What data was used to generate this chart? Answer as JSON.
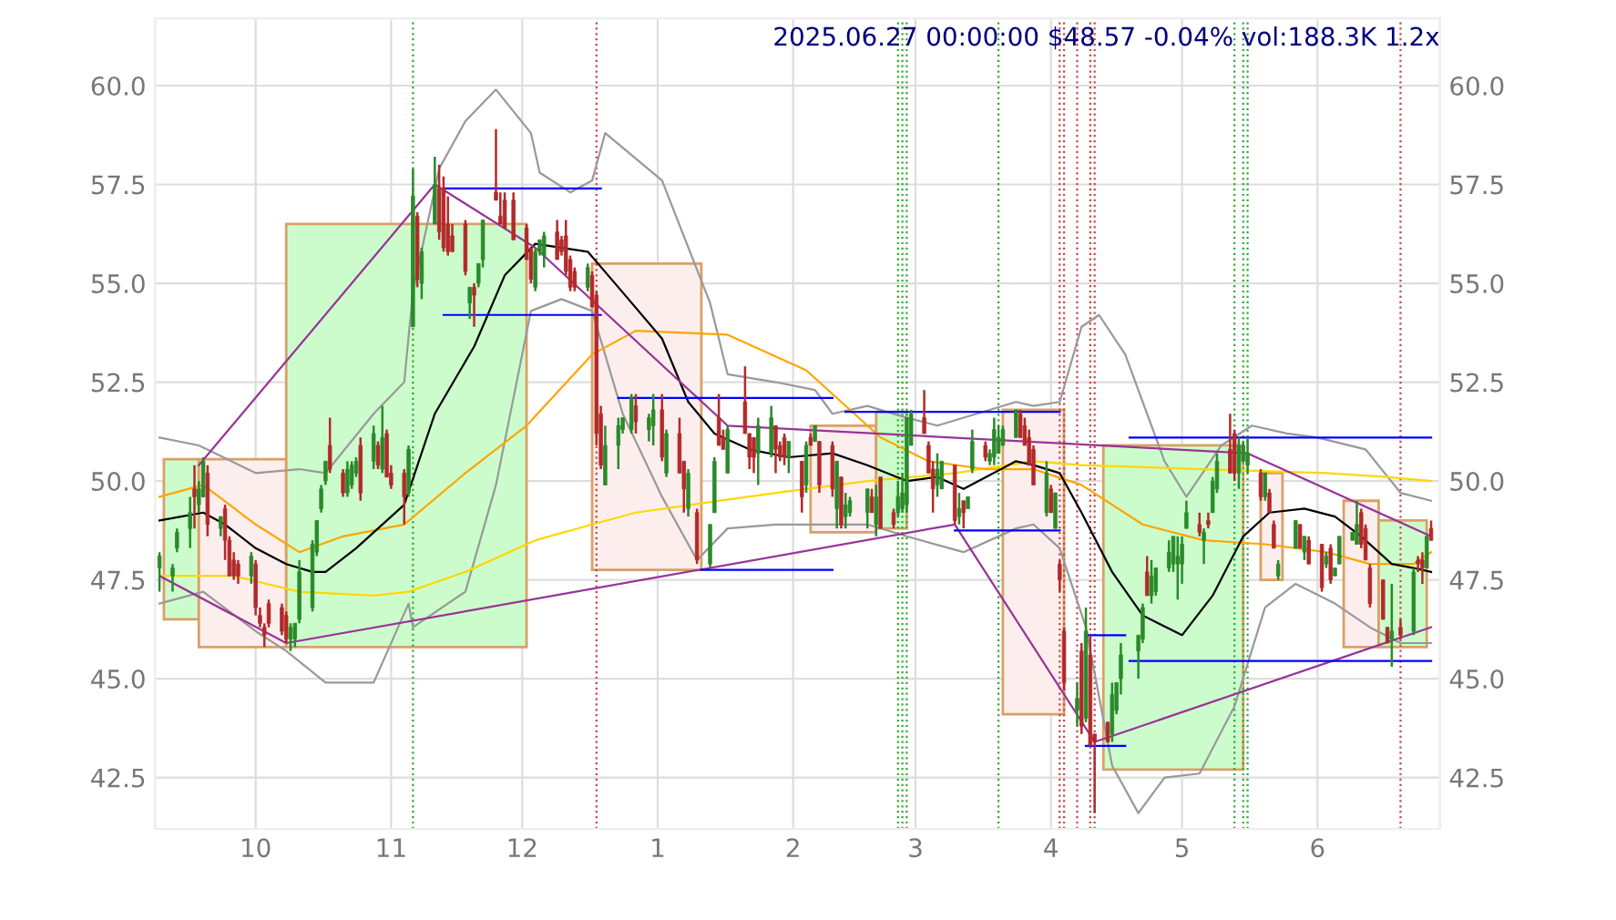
{
  "chart_data": {
    "type": "candlestick",
    "title": "2025.06.27 00:00:00 $48.57 -0.04% vol:188.3K 1.2x",
    "x": [
      "2024-09-09",
      "2024-09-12",
      "2024-09-13",
      "2024-09-16",
      "2024-09-17",
      "2024-09-18",
      "2024-09-19",
      "2024-09-20",
      "2024-09-23",
      "2024-09-24",
      "2024-09-25",
      "2024-09-26",
      "2024-09-27",
      "2024-09-30",
      "2024-10-01",
      "2024-10-02",
      "2024-10-03",
      "2024-10-04",
      "2024-10-07",
      "2024-10-08",
      "2024-10-09",
      "2024-10-10",
      "2024-10-11",
      "2024-10-14",
      "2024-10-15",
      "2024-10-16",
      "2024-10-17",
      "2024-10-18",
      "2024-10-21",
      "2024-10-22",
      "2024-10-23",
      "2024-10-24",
      "2024-10-25",
      "2024-10-28",
      "2024-10-29",
      "2024-10-30",
      "2024-10-31",
      "2024-11-01",
      "2024-11-04",
      "2024-11-05",
      "2024-11-06",
      "2024-11-07",
      "2024-11-08",
      "2024-11-11",
      "2024-11-12",
      "2024-11-13",
      "2024-11-14",
      "2024-11-15",
      "2024-11-18",
      "2024-11-19",
      "2024-11-20",
      "2024-11-21",
      "2024-11-22",
      "2024-11-25",
      "2024-11-26",
      "2024-11-27",
      "2024-11-29",
      "2024-12-02",
      "2024-12-03",
      "2024-12-04",
      "2024-12-05",
      "2024-12-06",
      "2024-12-09",
      "2024-12-10",
      "2024-12-11",
      "2024-12-12",
      "2024-12-13",
      "2024-12-16",
      "2024-12-17",
      "2024-12-18",
      "2024-12-19",
      "2024-12-20",
      "2024-12-23",
      "2024-12-24",
      "2024-12-26",
      "2024-12-27",
      "2024-12-30",
      "2024-12-31",
      "2025-01-02",
      "2025-01-03",
      "2025-01-06",
      "2025-01-07",
      "2025-01-08",
      "2025-01-10",
      "2025-01-13",
      "2025-01-14",
      "2025-01-15",
      "2025-01-16",
      "2025-01-17",
      "2025-01-21",
      "2025-01-22",
      "2025-01-23",
      "2025-01-24",
      "2025-01-27",
      "2025-01-28",
      "2025-01-29",
      "2025-01-30",
      "2025-01-31",
      "2025-02-03",
      "2025-02-04",
      "2025-02-05",
      "2025-02-06",
      "2025-02-07",
      "2025-02-10",
      "2025-02-11",
      "2025-02-12",
      "2025-02-13",
      "2025-02-14",
      "2025-02-18",
      "2025-02-19",
      "2025-02-20",
      "2025-02-21",
      "2025-02-24",
      "2025-02-25",
      "2025-02-26",
      "2025-02-27",
      "2025-02-28",
      "2025-03-03",
      "2025-03-04",
      "2025-03-05",
      "2025-03-06",
      "2025-03-07",
      "2025-03-10",
      "2025-03-11",
      "2025-03-12",
      "2025-03-13",
      "2025-03-14",
      "2025-03-17",
      "2025-03-18",
      "2025-03-19",
      "2025-03-20",
      "2025-03-21",
      "2025-03-24",
      "2025-03-25",
      "2025-03-26",
      "2025-03-27",
      "2025-03-28",
      "2025-03-31",
      "2025-04-01",
      "2025-04-02",
      "2025-04-03",
      "2025-04-04",
      "2025-04-07",
      "2025-04-08",
      "2025-04-09",
      "2025-04-10",
      "2025-04-11",
      "2025-04-14",
      "2025-04-15",
      "2025-04-16",
      "2025-04-17",
      "2025-04-21",
      "2025-04-22",
      "2025-04-23",
      "2025-04-24",
      "2025-04-25",
      "2025-04-28",
      "2025-04-29",
      "2025-04-30",
      "2025-05-01",
      "2025-05-02",
      "2025-05-05",
      "2025-05-06",
      "2025-05-07",
      "2025-05-08",
      "2025-05-09",
      "2025-05-12",
      "2025-05-13",
      "2025-05-14",
      "2025-05-15",
      "2025-05-16",
      "2025-05-19",
      "2025-05-20",
      "2025-05-21",
      "2025-05-22",
      "2025-05-23",
      "2025-05-27",
      "2025-05-28",
      "2025-05-29",
      "2025-05-30",
      "2025-06-02",
      "2025-06-03",
      "2025-06-04",
      "2025-06-05",
      "2025-06-06",
      "2025-06-09",
      "2025-06-10",
      "2025-06-11",
      "2025-06-12",
      "2025-06-13",
      "2025-06-16",
      "2025-06-17",
      "2025-06-18",
      "2025-06-20",
      "2025-06-23",
      "2025-06-24",
      "2025-06-25",
      "2025-06-26",
      "2025-06-27"
    ],
    "ohlc": [
      [
        47.8,
        48.2,
        47.2,
        48.1
      ],
      [
        47.6,
        47.9,
        47.2,
        47.8
      ],
      [
        48.3,
        48.8,
        48.2,
        48.7
      ],
      [
        48.8,
        49.6,
        48.3,
        49.2
      ],
      [
        49.8,
        50.4,
        48.8,
        49.6
      ],
      [
        49.4,
        50.0,
        49.2,
        49.8
      ],
      [
        49.6,
        50.6,
        49.6,
        50.5
      ],
      [
        50.2,
        50.4,
        48.6,
        48.9
      ],
      [
        48.8,
        49.1,
        48.6,
        49.1
      ],
      [
        49.3,
        49.4,
        48.0,
        48.5
      ],
      [
        48.5,
        48.6,
        47.6,
        47.6
      ],
      [
        48.0,
        48.2,
        47.5,
        47.6
      ],
      [
        47.9,
        48.0,
        47.4,
        47.6
      ],
      [
        47.6,
        48.2,
        47.4,
        48.1
      ],
      [
        47.9,
        48.0,
        46.6,
        46.8
      ],
      [
        46.6,
        46.8,
        46.3,
        46.4
      ],
      [
        46.3,
        46.4,
        45.8,
        46.1
      ],
      [
        46.9,
        47.0,
        46.3,
        46.4
      ],
      [
        46.8,
        46.9,
        46.1,
        46.2
      ],
      [
        46.6,
        46.7,
        45.9,
        46.0
      ],
      [
        46.0,
        46.4,
        45.7,
        46.3
      ],
      [
        46.0,
        46.4,
        45.8,
        46.4
      ],
      [
        46.5,
        48.0,
        46.4,
        47.7
      ],
      [
        46.8,
        48.5,
        46.7,
        48.4
      ],
      [
        48.2,
        49.0,
        48.1,
        49.0
      ],
      [
        49.3,
        49.9,
        49.2,
        49.8
      ],
      [
        50.0,
        50.5,
        49.9,
        50.5
      ],
      [
        50.9,
        51.6,
        50.2,
        50.3
      ],
      [
        50.2,
        50.3,
        49.6,
        49.7
      ],
      [
        49.7,
        50.5,
        49.6,
        50.3
      ],
      [
        49.9,
        50.5,
        49.8,
        50.4
      ],
      [
        50.2,
        50.6,
        50.1,
        50.5
      ],
      [
        50.9,
        51.1,
        49.5,
        49.7
      ],
      [
        50.5,
        51.4,
        50.3,
        51.2
      ],
      [
        50.9,
        51.0,
        50.3,
        50.4
      ],
      [
        50.3,
        51.9,
        50.2,
        51.1
      ],
      [
        51.2,
        51.3,
        50.1,
        50.1
      ],
      [
        50.2,
        50.4,
        49.8,
        49.9
      ],
      [
        50.2,
        50.3,
        48.9,
        49.6
      ],
      [
        49.7,
        50.9,
        49.6,
        50.8
      ],
      [
        53.9,
        57.9,
        53.9,
        57.2
      ],
      [
        56.7,
        56.8,
        54.9,
        55.1
      ],
      [
        55.0,
        55.9,
        54.6,
        55.8
      ],
      [
        56.5,
        58.2,
        56.5,
        57.5
      ],
      [
        57.4,
        58.0,
        56.1,
        56.3
      ],
      [
        57.4,
        57.7,
        55.8,
        55.9
      ],
      [
        56.5,
        57.2,
        55.7,
        55.8
      ],
      [
        56.2,
        56.5,
        55.8,
        55.8
      ],
      [
        56.5,
        56.6,
        55.2,
        55.3
      ],
      [
        54.5,
        54.9,
        54.1,
        54.9
      ],
      [
        54.9,
        55.0,
        53.9,
        54.7
      ],
      [
        55.0,
        55.5,
        54.9,
        55.5
      ],
      [
        55.6,
        56.6,
        55.4,
        56.6
      ],
      [
        57.3,
        58.9,
        57.1,
        57.1
      ],
      [
        56.7,
        57.3,
        56.5,
        56.5
      ],
      [
        57.1,
        57.3,
        56.4,
        56.4
      ],
      [
        57.1,
        57.3,
        56.1,
        56.1
      ],
      [
        56.4,
        56.5,
        55.6,
        55.6
      ],
      [
        55.9,
        55.9,
        55.0,
        55.1
      ],
      [
        54.9,
        55.9,
        54.8,
        55.8
      ],
      [
        55.8,
        56.1,
        55.7,
        56.1
      ],
      [
        55.7,
        56.3,
        55.4,
        56.2
      ],
      [
        56.3,
        56.6,
        55.6,
        55.6
      ],
      [
        56.1,
        56.2,
        55.7,
        55.8
      ],
      [
        56.2,
        56.6,
        55.2,
        55.3
      ],
      [
        55.6,
        55.7,
        54.8,
        54.9
      ],
      [
        55.3,
        55.4,
        54.8,
        54.9
      ],
      [
        54.9,
        55.5,
        54.8,
        55.4
      ],
      [
        55.2,
        55.3,
        54.4,
        54.4
      ],
      [
        54.7,
        54.8,
        50.9,
        51.2
      ],
      [
        51.7,
        51.9,
        50.3,
        50.4
      ],
      [
        49.9,
        51.4,
        49.9,
        50.9
      ],
      [
        50.9,
        51.6,
        50.3,
        51.4
      ],
      [
        51.3,
        51.6,
        51.2,
        51.6
      ],
      [
        51.3,
        52.2,
        51.2,
        52.1
      ],
      [
        51.9,
        52.2,
        51.2,
        51.5
      ],
      [
        51.3,
        51.7,
        51.0,
        51.6
      ],
      [
        51.4,
        52.2,
        50.9,
        51.8
      ],
      [
        51.8,
        52.2,
        50.5,
        50.6
      ],
      [
        50.2,
        51.3,
        50.1,
        51.2
      ],
      [
        51.2,
        51.6,
        50.2,
        50.2
      ],
      [
        50.5,
        50.5,
        49.2,
        49.8
      ],
      [
        49.3,
        50.3,
        49.1,
        50.2
      ],
      [
        49.2,
        49.3,
        47.9,
        48.0
      ],
      [
        47.9,
        48.9,
        47.8,
        48.9
      ],
      [
        49.2,
        50.6,
        49.2,
        50.5
      ],
      [
        51.6,
        52.2,
        50.9,
        50.9
      ],
      [
        51.1,
        51.3,
        50.8,
        50.8
      ],
      [
        50.2,
        51.4,
        50.2,
        51.3
      ],
      [
        52.0,
        52.9,
        51.2,
        51.2
      ],
      [
        51.2,
        51.2,
        50.3,
        50.6
      ],
      [
        51.1,
        51.1,
        50.2,
        50.6
      ],
      [
        50.7,
        51.6,
        49.9,
        51.4
      ],
      [
        50.7,
        51.9,
        50.6,
        51.6
      ],
      [
        51.4,
        51.4,
        50.2,
        50.8
      ],
      [
        50.9,
        51.0,
        50.5,
        50.6
      ],
      [
        51.1,
        51.2,
        50.4,
        50.6
      ],
      [
        50.6,
        51.0,
        50.2,
        51.0
      ],
      [
        50.5,
        50.5,
        49.2,
        49.6
      ],
      [
        49.9,
        51.0,
        49.7,
        50.9
      ],
      [
        51.1,
        51.2,
        50.9,
        50.9
      ],
      [
        51.0,
        51.4,
        51.0,
        51.4
      ],
      [
        51.0,
        51.0,
        49.7,
        49.9
      ],
      [
        50.9,
        51.0,
        49.6,
        49.8
      ],
      [
        49.3,
        50.5,
        48.8,
        50.5
      ],
      [
        50.1,
        50.1,
        48.8,
        48.9
      ],
      [
        49.1,
        49.7,
        48.8,
        49.4
      ],
      [
        49.2,
        49.6,
        49.1,
        49.5
      ],
      [
        49.2,
        49.8,
        48.8,
        49.8
      ],
      [
        49.6,
        49.8,
        49.2,
        49.2
      ],
      [
        48.9,
        49.9,
        48.6,
        49.6
      ],
      [
        50.1,
        50.1,
        48.8,
        48.8
      ],
      [
        49.2,
        49.3,
        48.8,
        48.9
      ],
      [
        49.2,
        50.0,
        49.1,
        49.6
      ],
      [
        49.3,
        50.2,
        49.2,
        49.7
      ],
      [
        49.4,
        51.6,
        49.2,
        51.6
      ],
      [
        50.9,
        51.8,
        50.9,
        51.7
      ],
      [
        51.6,
        52.3,
        51.2,
        51.2
      ],
      [
        50.9,
        51.0,
        50.2,
        50.2
      ],
      [
        50.3,
        50.5,
        49.2,
        49.8
      ],
      [
        49.9,
        50.7,
        49.6,
        50.3
      ],
      [
        49.8,
        50.5,
        49.8,
        50.5
      ],
      [
        50.4,
        50.4,
        48.9,
        49.0
      ],
      [
        49.1,
        49.7,
        48.9,
        49.3
      ],
      [
        49.5,
        49.5,
        48.8,
        49.2
      ],
      [
        49.3,
        49.6,
        49.3,
        49.6
      ],
      [
        50.3,
        51.3,
        50.2,
        51.0
      ],
      [
        50.9,
        51.0,
        50.5,
        50.6
      ],
      [
        50.5,
        50.8,
        50.4,
        50.7
      ],
      [
        50.6,
        51.6,
        50.4,
        51.3
      ],
      [
        50.7,
        51.4,
        50.7,
        51.1
      ],
      [
        50.9,
        51.4,
        50.9,
        51.3
      ],
      [
        51.1,
        51.8,
        51.1,
        51.8
      ],
      [
        51.7,
        51.8,
        51.1,
        51.1
      ],
      [
        51.4,
        51.6,
        50.9,
        50.9
      ],
      [
        51.1,
        51.3,
        50.4,
        50.4
      ],
      [
        50.8,
        50.9,
        49.9,
        49.9
      ],
      [
        49.2,
        50.5,
        49.1,
        50.2
      ],
      [
        49.8,
        49.9,
        49.2,
        49.2
      ],
      [
        48.8,
        49.7,
        48.8,
        49.7
      ],
      [
        47.9,
        48.0,
        47.2,
        47.5
      ],
      [
        46.2,
        46.3,
        44.7,
        44.9
      ],
      [
        44.2,
        44.9,
        43.8,
        44.5
      ],
      [
        45.7,
        45.9,
        43.6,
        43.8
      ],
      [
        44.0,
        46.8,
        43.9,
        46.2
      ],
      [
        45.6,
        46.1,
        43.3,
        43.3
      ],
      [
        43.6,
        43.6,
        41.6,
        43.4
      ],
      [
        43.9,
        43.9,
        43.4,
        43.4
      ],
      [
        43.6,
        44.9,
        43.4,
        44.6
      ],
      [
        44.2,
        44.9,
        44.1,
        44.9
      ],
      [
        45.0,
        45.9,
        44.6,
        45.6
      ],
      [
        45.7,
        46.1,
        45.0,
        46.1
      ],
      [
        46.0,
        46.9,
        45.9,
        46.8
      ],
      [
        47.7,
        48.1,
        47.1,
        47.1
      ],
      [
        47.1,
        48.0,
        46.9,
        47.6
      ],
      [
        47.2,
        47.8,
        47.1,
        47.8
      ],
      [
        47.8,
        48.5,
        47.7,
        48.2
      ],
      [
        47.9,
        48.6,
        47.7,
        48.6
      ],
      [
        47.9,
        48.6,
        47.0,
        48.1
      ],
      [
        47.9,
        48.6,
        47.4,
        48.4
      ],
      [
        48.8,
        49.5,
        48.8,
        49.2
      ],
      [
        48.9,
        49.2,
        48.6,
        48.7
      ],
      [
        48.5,
        48.8,
        47.9,
        48.7
      ],
      [
        49.0,
        49.2,
        48.8,
        48.9
      ],
      [
        49.2,
        50.1,
        49.2,
        50.0
      ],
      [
        49.8,
        50.7,
        49.7,
        50.5
      ],
      [
        50.8,
        51.7,
        50.2,
        50.2
      ],
      [
        51.2,
        51.3,
        50.0,
        50.2
      ],
      [
        50.2,
        51.1,
        49.8,
        50.9
      ],
      [
        50.5,
        51.0,
        50.5,
        50.9
      ],
      [
        50.4,
        51.1,
        50.2,
        50.7
      ],
      [
        50.2,
        50.3,
        49.5,
        49.6
      ],
      [
        49.6,
        50.2,
        49.5,
        50.2
      ],
      [
        49.7,
        49.8,
        49.2,
        49.2
      ],
      [
        48.9,
        49.0,
        48.3,
        48.3
      ],
      [
        47.6,
        48.0,
        47.5,
        47.9
      ],
      [
        48.3,
        49.0,
        48.3,
        49.0
      ],
      [
        48.9,
        48.9,
        48.3,
        48.3
      ],
      [
        48.2,
        48.6,
        48.0,
        48.6
      ],
      [
        48.5,
        48.6,
        47.9,
        47.9
      ],
      [
        48.4,
        48.4,
        47.2,
        47.3
      ],
      [
        47.9,
        48.2,
        47.8,
        48.1
      ],
      [
        48.3,
        48.4,
        47.4,
        47.5
      ],
      [
        47.6,
        47.8,
        47.6,
        47.8
      ],
      [
        47.9,
        48.6,
        47.9,
        48.6
      ],
      [
        48.5,
        48.7,
        48.5,
        48.7
      ],
      [
        48.4,
        49.5,
        48.4,
        48.9
      ],
      [
        49.2,
        49.3,
        48.3,
        48.4
      ],
      [
        48.8,
        48.9,
        48.0,
        48.0
      ],
      [
        47.8,
        47.9,
        46.8,
        46.9
      ],
      [
        47.5,
        47.5,
        46.5,
        46.5
      ],
      [
        46.3,
        46.3,
        45.9,
        45.9
      ],
      [
        46.0,
        47.4,
        45.3,
        46.2
      ],
      [
        46.3,
        46.5,
        46.0,
        46.1
      ],
      [
        46.2,
        47.8,
        46.1,
        47.7
      ],
      [
        48.0,
        48.1,
        47.7,
        47.9
      ],
      [
        48.0,
        48.2,
        47.4,
        47.8
      ],
      [
        47.8,
        48.6,
        47.8,
        48.6
      ],
      [
        48.8,
        49.0,
        48.5,
        48.5
      ]
    ],
    "series": [
      {
        "type": "area",
        "color": "#ccfccc",
        "x": [
          "2024-09-10",
          "2024-09-10",
          "2024-09-18",
          "2024-09-18",
          "2024-09-10"
        ],
        "values": [
          46.5,
          50.55,
          50.55,
          46.5,
          46.5
        ]
      },
      {
        "type": "area",
        "color": "#fdeeee",
        "x": [
          "2024-09-18",
          "2024-09-18",
          "2024-10-08",
          "2024-10-08",
          "2024-09-18"
        ],
        "values": [
          45.8,
          50.55,
          50.55,
          45.8,
          45.8
        ]
      },
      {
        "type": "area",
        "color": "#ccfccc",
        "x": [
          "2024-10-08",
          "2024-10-08",
          "2024-12-02",
          "2024-12-02",
          "2024-10-08"
        ],
        "values": [
          45.8,
          56.5,
          56.5,
          45.8,
          45.8
        ]
      },
      {
        "type": "area",
        "color": "#fdeeee",
        "x": [
          "2024-12-17",
          "2024-12-17",
          "2025-01-11",
          "2025-01-11",
          "2024-12-17"
        ],
        "values": [
          47.75,
          55.5,
          55.5,
          47.75,
          47.75
        ]
      },
      {
        "type": "area",
        "color": "#fdeeee",
        "x": [
          "2025-02-05",
          "2025-02-05",
          "2025-02-20",
          "2025-02-20",
          "2025-02-05"
        ],
        "values": [
          48.7,
          51.4,
          51.4,
          48.7,
          48.7
        ]
      },
      {
        "type": "area",
        "color": "#ccfccc",
        "x": [
          "2025-02-20",
          "2025-02-20",
          "2025-02-27",
          "2025-02-27",
          "2025-02-20"
        ],
        "values": [
          48.8,
          51.75,
          51.75,
          48.8,
          48.8
        ]
      },
      {
        "type": "area",
        "color": "#fdeeee",
        "x": [
          "2025-03-21",
          "2025-03-21",
          "2025-04-04",
          "2025-04-04",
          "2025-03-21"
        ],
        "values": [
          44.1,
          51.8,
          51.8,
          44.1,
          44.1
        ]
      },
      {
        "type": "area",
        "color": "#ccfccc",
        "x": [
          "2025-04-13",
          "2025-04-13",
          "2025-05-15",
          "2025-05-15",
          "2025-04-13"
        ],
        "values": [
          42.7,
          50.9,
          50.9,
          42.7,
          42.7
        ]
      },
      {
        "type": "area",
        "color": "#fdeeee",
        "x": [
          "2025-05-19",
          "2025-05-19",
          "2025-05-24",
          "2025-05-24",
          "2025-05-19"
        ],
        "values": [
          47.5,
          50.2,
          50.2,
          47.5,
          47.5
        ]
      },
      {
        "type": "area",
        "color": "#fdeeee",
        "x": [
          "2025-06-07",
          "2025-06-07",
          "2025-06-15",
          "2025-06-15",
          "2025-06-07"
        ],
        "values": [
          45.8,
          49.5,
          49.5,
          45.8,
          45.8
        ]
      },
      {
        "type": "area",
        "color": "#ccfccc",
        "x": [
          "2025-06-15",
          "2025-06-15",
          "2025-06-26",
          "2025-06-26",
          "2025-06-15"
        ],
        "values": [
          45.8,
          49.0,
          49.0,
          45.8,
          45.8
        ]
      },
      {
        "type": "line",
        "color": "#999999",
        "x": [
          "2024-09-09",
          "2024-09-18",
          "2024-10-01",
          "2024-10-11",
          "2024-10-17",
          "2024-10-28",
          "2024-11-04",
          "2024-11-06",
          "2024-11-12",
          "2024-11-18",
          "2024-11-25",
          "2024-12-03",
          "2024-12-05",
          "2024-12-12",
          "2024-12-17",
          "2024-12-20",
          "2025-01-02",
          "2025-01-13",
          "2025-01-17",
          "2025-01-28",
          "2025-02-06",
          "2025-02-10",
          "2025-02-18",
          "2025-02-27",
          "2025-03-06",
          "2025-03-24",
          "2025-03-28",
          "2025-04-03",
          "2025-04-08",
          "2025-04-12",
          "2025-04-18",
          "2025-04-27",
          "2025-05-02",
          "2025-05-10",
          "2025-05-17",
          "2025-05-25",
          "2025-06-01",
          "2025-06-12",
          "2025-06-20",
          "2025-06-27"
        ],
        "values": [
          51.1,
          50.9,
          50.2,
          50.3,
          50.2,
          51.7,
          52.5,
          54.8,
          57.9,
          59.1,
          59.9,
          58.8,
          57.8,
          57.3,
          57.6,
          58.8,
          57.6,
          54.5,
          52.7,
          52.5,
          52.3,
          51.7,
          51.9,
          51.6,
          51.4,
          52.0,
          51.9,
          52.0,
          53.9,
          54.2,
          53.2,
          50.5,
          49.6,
          50.9,
          51.4,
          51.2,
          51.1,
          50.8,
          49.7,
          49.5
        ]
      },
      {
        "type": "line",
        "color": "#999999",
        "x": [
          "2024-09-09",
          "2024-09-19",
          "2024-10-01",
          "2024-10-08",
          "2024-10-17",
          "2024-10-28",
          "2024-11-05",
          "2024-11-06",
          "2024-11-18",
          "2024-11-25",
          "2024-12-03",
          "2024-12-10",
          "2024-12-17",
          "2024-12-24",
          "2025-01-02",
          "2025-01-10",
          "2025-01-17",
          "2025-01-28",
          "2025-02-06",
          "2025-02-18",
          "2025-02-27",
          "2025-03-12",
          "2025-03-24",
          "2025-03-28",
          "2025-04-03",
          "2025-04-09",
          "2025-04-15",
          "2025-04-21",
          "2025-04-27",
          "2025-05-05",
          "2025-05-13",
          "2025-05-20",
          "2025-05-27",
          "2025-06-05",
          "2025-06-13",
          "2025-06-20",
          "2025-06-27"
        ],
        "values": [
          46.9,
          47.2,
          46.2,
          45.7,
          44.9,
          44.9,
          46.9,
          46.3,
          47.2,
          49.9,
          54.3,
          54.6,
          54.3,
          51.7,
          49.6,
          48.0,
          48.8,
          48.9,
          48.9,
          48.9,
          48.6,
          48.2,
          48.8,
          48.9,
          48.3,
          46.3,
          42.8,
          41.6,
          42.5,
          42.6,
          44.3,
          46.8,
          47.4,
          46.9,
          46.3,
          45.9,
          45.9
        ]
      },
      {
        "type": "line",
        "color": "#ffd700",
        "x": [
          "2024-09-09",
          "2024-09-26",
          "2024-10-11",
          "2024-10-28",
          "2024-11-05",
          "2024-11-18",
          "2024-12-04",
          "2024-12-17",
          "2024-12-27",
          "2025-01-28",
          "2025-02-18",
          "2025-03-10",
          "2025-03-28",
          "2025-04-08",
          "2025-05-06",
          "2025-06-03",
          "2025-06-17",
          "2025-06-27"
        ],
        "values": [
          47.6,
          47.6,
          47.2,
          47.1,
          47.2,
          47.7,
          48.5,
          48.9,
          49.2,
          49.7,
          50.0,
          50.2,
          50.5,
          50.4,
          50.3,
          50.2,
          50.1,
          50.0
        ]
      },
      {
        "type": "line",
        "color": "#ffa500",
        "x": [
          "2024-09-09",
          "2024-09-19",
          "2024-10-01",
          "2024-10-11",
          "2024-10-21",
          "2024-11-04",
          "2024-11-18",
          "2024-12-02",
          "2024-12-17",
          "2024-12-27",
          "2025-01-17",
          "2025-02-04",
          "2025-02-10",
          "2025-02-21",
          "2025-03-04",
          "2025-03-17",
          "2025-03-28",
          "2025-04-08",
          "2025-04-22",
          "2025-05-06",
          "2025-05-20",
          "2025-06-03",
          "2025-06-13",
          "2025-06-23",
          "2025-06-27"
        ],
        "values": [
          49.6,
          49.9,
          48.9,
          48.2,
          48.6,
          48.9,
          50.2,
          51.4,
          53.2,
          53.8,
          53.7,
          52.8,
          52.2,
          51.1,
          50.5,
          50.3,
          50.3,
          49.9,
          48.9,
          48.5,
          48.4,
          48.2,
          47.9,
          47.9,
          48.2
        ]
      },
      {
        "type": "line",
        "color": "#000000",
        "x": [
          "2024-09-09",
          "2024-09-19",
          "2024-09-24",
          "2024-10-01",
          "2024-10-08",
          "2024-10-14",
          "2024-10-17",
          "2024-10-24",
          "2024-11-04",
          "2024-11-11",
          "2024-11-20",
          "2024-11-27",
          "2024-12-04",
          "2024-12-16",
          "2024-12-23",
          "2025-01-02",
          "2025-01-08",
          "2025-01-14",
          "2025-01-22",
          "2025-01-31",
          "2025-02-10",
          "2025-02-18",
          "2025-02-27",
          "2025-03-06",
          "2025-03-12",
          "2025-03-24",
          "2025-03-28",
          "2025-04-03",
          "2025-04-08",
          "2025-04-15",
          "2025-04-22",
          "2025-05-01",
          "2025-05-08",
          "2025-05-15",
          "2025-05-21",
          "2025-05-29",
          "2025-06-05",
          "2025-06-11",
          "2025-06-18",
          "2025-06-23",
          "2025-06-27"
        ],
        "values": [
          49.0,
          49.2,
          48.9,
          48.3,
          47.9,
          47.7,
          47.7,
          48.3,
          49.4,
          51.7,
          53.4,
          55.2,
          56.0,
          55.8,
          54.9,
          53.6,
          52.0,
          51.2,
          50.8,
          50.6,
          50.7,
          50.4,
          50.0,
          50.1,
          49.8,
          50.5,
          50.4,
          50.2,
          49.2,
          47.7,
          46.6,
          46.1,
          47.1,
          48.6,
          49.2,
          49.3,
          49.1,
          48.6,
          47.9,
          47.8,
          47.7
        ]
      },
      {
        "type": "line",
        "color": "#993399",
        "x": [
          "2024-09-09",
          "2024-10-08",
          "2025-03-10",
          "2025-04-11",
          "2025-06-27"
        ],
        "values": [
          47.6,
          45.9,
          48.9,
          43.4,
          46.3
        ]
      },
      {
        "type": "line",
        "color": "#993399",
        "x": [
          "2024-09-18",
          "2024-11-11",
          "2024-12-04",
          "2025-01-17",
          "2025-05-16",
          "2025-06-27"
        ],
        "values": [
          50.4,
          57.5,
          55.9,
          51.4,
          50.7,
          48.6
        ]
      },
      {
        "type": "line",
        "color": "#0000ff",
        "x": [
          "2024-11-13",
          "2024-12-19"
        ],
        "values": [
          57.4,
          57.4
        ]
      },
      {
        "type": "line",
        "color": "#0000ff",
        "x": [
          "2024-11-13",
          "2024-12-19"
        ],
        "values": [
          54.2,
          54.2
        ]
      },
      {
        "type": "line",
        "color": "#0000ff",
        "x": [
          "2024-12-23",
          "2025-02-10"
        ],
        "values": [
          52.1,
          52.1
        ]
      },
      {
        "type": "line",
        "color": "#0000ff",
        "x": [
          "2025-01-11",
          "2025-02-10"
        ],
        "values": [
          47.75,
          47.75
        ]
      },
      {
        "type": "line",
        "color": "#0000ff",
        "x": [
          "2025-02-13",
          "2025-04-03"
        ],
        "values": [
          51.75,
          51.75
        ]
      },
      {
        "type": "line",
        "color": "#0000ff",
        "x": [
          "2025-03-10",
          "2025-04-03"
        ],
        "values": [
          48.75,
          48.75
        ]
      },
      {
        "type": "line",
        "color": "#0000ff",
        "x": [
          "2025-04-19",
          "2025-06-27"
        ],
        "values": [
          51.1,
          51.1
        ]
      },
      {
        "type": "line",
        "color": "#0000ff",
        "x": [
          "2025-04-19",
          "2025-06-27"
        ],
        "values": [
          45.45,
          45.45
        ]
      },
      {
        "type": "line",
        "color": "#0000ff",
        "x": [
          "2025-04-09",
          "2025-04-18"
        ],
        "values": [
          46.1,
          46.1
        ]
      },
      {
        "type": "line",
        "color": "#0000ff",
        "x": [
          "2025-04-09",
          "2025-04-18"
        ],
        "values": [
          43.3,
          43.3
        ]
      }
    ],
    "ref_lines": [
      {
        "axis": "x",
        "value": "2024-11-06",
        "color": "#33aa33",
        "line_style": "dotted"
      },
      {
        "axis": "x",
        "value": "2024-12-18",
        "color": "#cc4444",
        "line_style": "dotted"
      },
      {
        "axis": "x",
        "value": "2025-02-25",
        "color": "#33aa33",
        "line_style": "dotted"
      },
      {
        "axis": "x",
        "value": "2025-02-26",
        "color": "#33aa33",
        "line_style": "dotted"
      },
      {
        "axis": "x",
        "value": "2025-02-27",
        "color": "#33aa33",
        "line_style": "dotted"
      },
      {
        "axis": "x",
        "value": "2025-03-20",
        "color": "#33aa33",
        "line_style": "dotted"
      },
      {
        "axis": "x",
        "value": "2025-04-03",
        "color": "#cc4444",
        "line_style": "dotted"
      },
      {
        "axis": "x",
        "value": "2025-04-04",
        "color": "#cc4444",
        "line_style": "dotted"
      },
      {
        "axis": "x",
        "value": "2025-04-07",
        "color": "#cc4444",
        "line_style": "dotted"
      },
      {
        "axis": "x",
        "value": "2025-04-10",
        "color": "#cc4444",
        "line_style": "dotted"
      },
      {
        "axis": "x",
        "value": "2025-04-11",
        "color": "#cc4444",
        "line_style": "dotted"
      },
      {
        "axis": "x",
        "value": "2025-05-13",
        "color": "#33aa33",
        "line_style": "dotted"
      },
      {
        "axis": "x",
        "value": "2025-05-15",
        "color": "#33aa33",
        "line_style": "dotted"
      },
      {
        "axis": "x",
        "value": "2025-05-16",
        "color": "#33aa33",
        "line_style": "dotted"
      },
      {
        "axis": "x",
        "value": "2025-06-20",
        "color": "#cc4444",
        "line_style": "dotted"
      }
    ],
    "xlim": [
      "2024-09-08",
      "2025-06-29"
    ],
    "xticks": [
      {
        "value": "2024-10-01",
        "label": "10"
      },
      {
        "value": "2024-11-01",
        "label": "11"
      },
      {
        "value": "2024-12-01",
        "label": "12"
      },
      {
        "value": "2025-01-01",
        "label": "1"
      },
      {
        "value": "2025-02-01",
        "label": "2"
      },
      {
        "value": "2025-03-01",
        "label": "3"
      },
      {
        "value": "2025-04-01",
        "label": "4"
      },
      {
        "value": "2025-05-01",
        "label": "5"
      },
      {
        "value": "2025-06-01",
        "label": "6"
      }
    ],
    "ylim": [
      41.2,
      61.7
    ],
    "yticks": [
      {
        "value": 42.5,
        "label": "42.5"
      },
      {
        "value": 45,
        "label": "45.0"
      },
      {
        "value": 47.5,
        "label": "47.5"
      },
      {
        "value": 50,
        "label": "50.0"
      },
      {
        "value": 52.5,
        "label": "52.5"
      },
      {
        "value": 55,
        "label": "55.0"
      },
      {
        "value": 57.5,
        "label": "57.5"
      },
      {
        "value": 60,
        "label": "60.0"
      }
    ],
    "y2lim": [
      41.2,
      61.7
    ],
    "y2ticks": [
      {
        "value": 42.5,
        "label": "42.5"
      },
      {
        "value": 45,
        "label": "45.0"
      },
      {
        "value": 47.5,
        "label": "47.5"
      },
      {
        "value": 50,
        "label": "50.0"
      },
      {
        "value": 52.5,
        "label": "52.5"
      },
      {
        "value": 55,
        "label": "55.0"
      },
      {
        "value": 57.5,
        "label": "57.5"
      },
      {
        "value": 60,
        "label": "60.0"
      }
    ],
    "grid": true
  }
}
